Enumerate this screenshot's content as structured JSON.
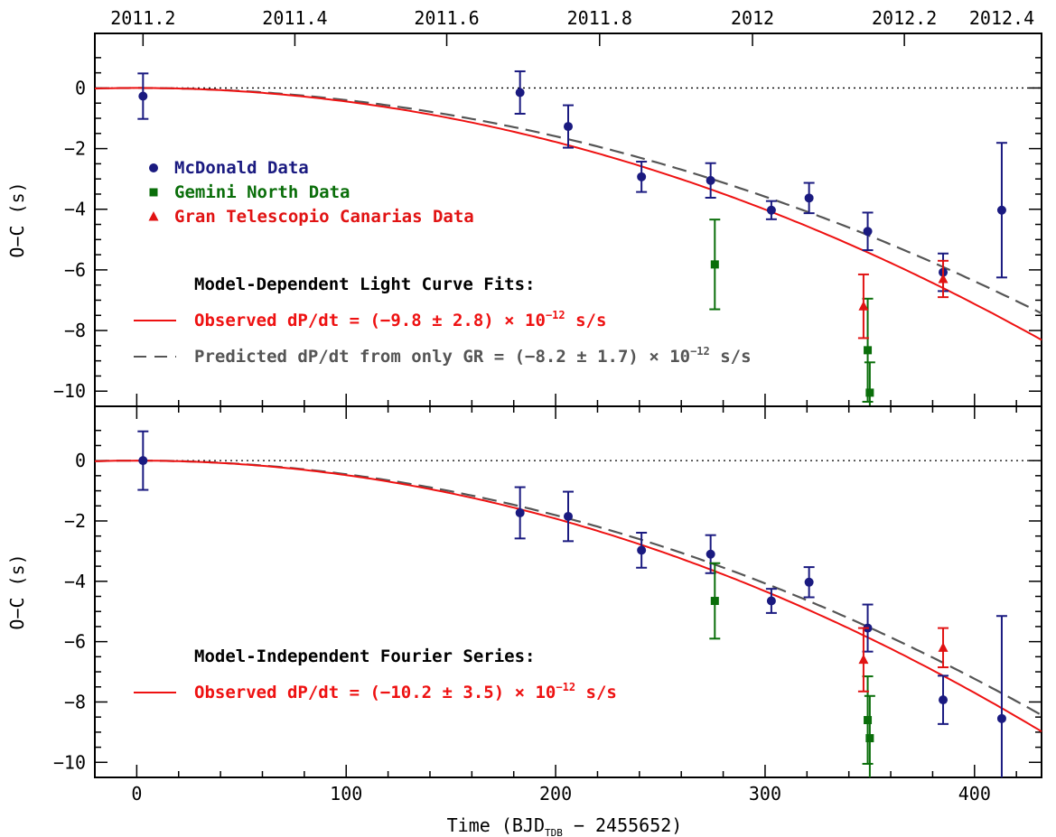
{
  "chart_data": [
    {
      "type": "scatter",
      "panel": "top",
      "xlabel": "",
      "ylabel": "O−C (s)",
      "xlim": [
        -20,
        432
      ],
      "ylim": [
        -10.5,
        1.8
      ],
      "yticks": [
        0,
        -2,
        -4,
        -6,
        -8,
        -10
      ],
      "top_axis_ticks": [
        "2011.2",
        "2011.4",
        "2011.6",
        "2011.8",
        "2012",
        "2012.2",
        "2012.4"
      ],
      "top_axis_positions": [
        3,
        75.5,
        148,
        221,
        294,
        366.5,
        439
      ],
      "legend": [
        {
          "name": "McDonald Data",
          "color": "#1a1a80",
          "marker": "circle"
        },
        {
          "name": "Gemini North Data",
          "color": "#0a6e0a",
          "marker": "square"
        },
        {
          "name": "Gran Telescopio Canarias Data",
          "color": "#e11313",
          "marker": "triangle"
        }
      ],
      "annotation_title": "Model-Dependent Light Curve Fits:",
      "curve_labels": [
        {
          "text": "Observed dP/dt = (−9.8 ± 2.8) × 10",
          "exp": "−12",
          "tail": " s/s",
          "color": "#ee1111",
          "style": "solid"
        },
        {
          "text": "Predicted dP/dt from only GR = (−8.2 ± 1.7) × 10",
          "exp": "−12",
          "tail": " s/s",
          "color": "#555555",
          "style": "dashed"
        }
      ],
      "curves": {
        "observed_coeff": -4.453e-05,
        "predicted_coeff": -3.983e-05
      },
      "series": [
        {
          "name": "McDonald Data",
          "color": "#1a1a80",
          "marker": "circle",
          "points": [
            [
              3,
              -0.27,
              0.75
            ],
            [
              183,
              -0.15,
              0.7
            ],
            [
              206,
              -1.27,
              0.7
            ],
            [
              241,
              -2.93,
              0.5
            ],
            [
              274,
              -3.05,
              0.57
            ],
            [
              303,
              -4.03,
              0.3
            ],
            [
              321,
              -3.63,
              0.5
            ],
            [
              349,
              -4.73,
              0.62
            ],
            [
              385,
              -6.08,
              0.62
            ],
            [
              413,
              -4.03,
              2.22
            ]
          ]
        },
        {
          "name": "Gemini North Data",
          "color": "#0a6e0a",
          "marker": "square",
          "points": [
            [
              276,
              -5.82,
              1.48
            ],
            [
              349,
              -8.65,
              1.7
            ],
            [
              350,
              -10.05,
              1.0
            ]
          ]
        },
        {
          "name": "Gran Telescopio Canarias Data",
          "color": "#e11313",
          "marker": "triangle",
          "points": [
            [
              347,
              -7.2,
              1.05
            ],
            [
              385,
              -6.3,
              0.6
            ]
          ]
        }
      ]
    },
    {
      "type": "scatter",
      "panel": "bottom",
      "xlabel": "Time (BJD",
      "xlabel_sub": "TDB",
      "xlabel_tail": " − 2455652)",
      "ylabel": "O−C (s)",
      "xlim": [
        -20,
        432
      ],
      "ylim": [
        -10.5,
        1.8
      ],
      "xticks": [
        0,
        100,
        200,
        300,
        400
      ],
      "yticks": [
        0,
        -2,
        -4,
        -6,
        -8,
        -10
      ],
      "annotation_title": "Model-Independent Fourier Series:",
      "curve_labels": [
        {
          "text": "Observed dP/dt = (−10.2 ± 3.5) × 10",
          "exp": "−12",
          "tail": " s/s",
          "color": "#ee1111",
          "style": "solid"
        }
      ],
      "curves": {
        "observed_coeff": -4.81e-05,
        "predicted_coeff": -4.52e-05
      },
      "series": [
        {
          "name": "McDonald Data",
          "color": "#1a1a80",
          "marker": "circle",
          "points": [
            [
              3,
              0,
              0.97
            ],
            [
              183,
              -1.73,
              0.85
            ],
            [
              206,
              -1.85,
              0.82
            ],
            [
              241,
              -2.97,
              0.58
            ],
            [
              274,
              -3.1,
              0.63
            ],
            [
              303,
              -4.65,
              0.4
            ],
            [
              321,
              -4.03,
              0.5
            ],
            [
              349,
              -5.55,
              0.78
            ],
            [
              385,
              -7.93,
              0.8
            ],
            [
              413,
              -8.55,
              3.4
            ]
          ]
        },
        {
          "name": "Gemini North Data",
          "color": "#0a6e0a",
          "marker": "square",
          "points": [
            [
              276,
              -4.65,
              1.25
            ],
            [
              349,
              -8.6,
              1.45
            ],
            [
              350,
              -9.2,
              1.4
            ]
          ]
        },
        {
          "name": "Gran Telescopio Canarias Data",
          "color": "#e11313",
          "marker": "triangle",
          "points": [
            [
              347,
              -6.6,
              1.05
            ],
            [
              385,
              -6.2,
              0.65
            ]
          ]
        }
      ]
    }
  ]
}
